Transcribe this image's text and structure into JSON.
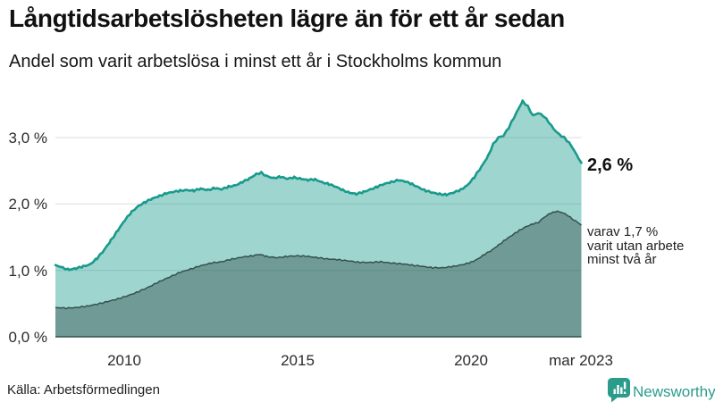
{
  "title": "Långtidsarbetslösheten lägre än för ett år sedan",
  "subtitle": "Andel som varit arbetslösa i minst ett år i Stockholms kommun",
  "source": "Källa: Arbetsförmedlingen",
  "branding": {
    "name": "Newsworthy",
    "icon": "newsworthy-speech-bubble-barchart-icon"
  },
  "annotations": {
    "latest_value": "2,6 %",
    "secondary_note": "varav 1,7 %\nvarit utan arbete\nminst två år"
  },
  "y_axis": {
    "tick_labels": [
      "3,0 %",
      "2,0 %",
      "1,0 %",
      "0,0 %"
    ],
    "tick_values": [
      3,
      2,
      1,
      0
    ]
  },
  "x_axis": {
    "tick_labels": [
      "2010",
      "2015",
      "2020",
      "mar 2023"
    ],
    "tick_values": [
      2010,
      2015,
      2020,
      2023.2
    ]
  },
  "colors": {
    "line_primary": "#189a8c",
    "line_secondary": "#35514d",
    "fill_primary_opacity": 0.42,
    "fill_secondary_opacity": 0.45,
    "gridline": "#dcdce0",
    "axis_line": "#35514d",
    "brand_teal": "#2b9c8c",
    "text": "#111111"
  },
  "chart_data": {
    "type": "area",
    "title": "Långtidsarbetslösheten lägre än för ett år sedan",
    "subtitle": "Andel som varit arbetslösa i minst ett år i Stockholms kommun",
    "unit": "%",
    "xlim": [
      2008,
      2023.2
    ],
    "ylim": [
      0,
      3.8
    ],
    "grid": "horizontal",
    "legend": "none",
    "latest_values": {
      "minst_ett_ar": 2.6,
      "minst_tva_ar": 1.7
    },
    "series": [
      {
        "name": "Andel arbetslösa minst ett år",
        "color": "#189a8c",
        "fill_opacity": 0.42,
        "points": [
          [
            2008.0,
            1.08
          ],
          [
            2008.2,
            1.04
          ],
          [
            2008.4,
            1.01
          ],
          [
            2008.6,
            1.03
          ],
          [
            2008.8,
            1.06
          ],
          [
            2009.0,
            1.09
          ],
          [
            2009.2,
            1.18
          ],
          [
            2009.4,
            1.3
          ],
          [
            2009.6,
            1.45
          ],
          [
            2009.8,
            1.6
          ],
          [
            2010.0,
            1.75
          ],
          [
            2010.2,
            1.88
          ],
          [
            2010.4,
            1.97
          ],
          [
            2010.6,
            2.03
          ],
          [
            2010.8,
            2.08
          ],
          [
            2011.0,
            2.12
          ],
          [
            2011.2,
            2.16
          ],
          [
            2011.4,
            2.18
          ],
          [
            2011.6,
            2.2
          ],
          [
            2011.8,
            2.21
          ],
          [
            2012.0,
            2.2
          ],
          [
            2012.2,
            2.23
          ],
          [
            2012.4,
            2.21
          ],
          [
            2012.6,
            2.24
          ],
          [
            2012.8,
            2.22
          ],
          [
            2013.0,
            2.26
          ],
          [
            2013.2,
            2.28
          ],
          [
            2013.4,
            2.33
          ],
          [
            2013.6,
            2.38
          ],
          [
            2013.8,
            2.45
          ],
          [
            2013.95,
            2.47
          ],
          [
            2014.1,
            2.42
          ],
          [
            2014.3,
            2.39
          ],
          [
            2014.5,
            2.41
          ],
          [
            2014.7,
            2.38
          ],
          [
            2014.9,
            2.4
          ],
          [
            2015.1,
            2.38
          ],
          [
            2015.3,
            2.36
          ],
          [
            2015.5,
            2.37
          ],
          [
            2015.7,
            2.33
          ],
          [
            2015.9,
            2.3
          ],
          [
            2016.1,
            2.26
          ],
          [
            2016.3,
            2.21
          ],
          [
            2016.5,
            2.17
          ],
          [
            2016.7,
            2.15
          ],
          [
            2016.9,
            2.18
          ],
          [
            2017.1,
            2.22
          ],
          [
            2017.3,
            2.26
          ],
          [
            2017.5,
            2.3
          ],
          [
            2017.7,
            2.33
          ],
          [
            2017.9,
            2.36
          ],
          [
            2018.1,
            2.34
          ],
          [
            2018.3,
            2.3
          ],
          [
            2018.5,
            2.25
          ],
          [
            2018.7,
            2.2
          ],
          [
            2018.9,
            2.17
          ],
          [
            2019.1,
            2.15
          ],
          [
            2019.3,
            2.14
          ],
          [
            2019.5,
            2.17
          ],
          [
            2019.7,
            2.21
          ],
          [
            2019.9,
            2.28
          ],
          [
            2020.1,
            2.4
          ],
          [
            2020.3,
            2.55
          ],
          [
            2020.5,
            2.72
          ],
          [
            2020.65,
            2.9
          ],
          [
            2020.8,
            3.0
          ],
          [
            2020.95,
            3.03
          ],
          [
            2021.1,
            3.15
          ],
          [
            2021.25,
            3.3
          ],
          [
            2021.4,
            3.45
          ],
          [
            2021.5,
            3.55
          ],
          [
            2021.65,
            3.47
          ],
          [
            2021.8,
            3.33
          ],
          [
            2021.95,
            3.37
          ],
          [
            2022.1,
            3.33
          ],
          [
            2022.25,
            3.24
          ],
          [
            2022.4,
            3.13
          ],
          [
            2022.55,
            3.05
          ],
          [
            2022.7,
            3.0
          ],
          [
            2022.85,
            2.92
          ],
          [
            2023.0,
            2.8
          ],
          [
            2023.1,
            2.7
          ],
          [
            2023.2,
            2.62
          ]
        ]
      },
      {
        "name": "varav utan arbete minst två år",
        "color": "#35514d",
        "fill_opacity": 0.45,
        "points": [
          [
            2008.0,
            0.44
          ],
          [
            2008.3,
            0.43
          ],
          [
            2008.6,
            0.44
          ],
          [
            2008.9,
            0.46
          ],
          [
            2009.2,
            0.49
          ],
          [
            2009.5,
            0.53
          ],
          [
            2009.8,
            0.57
          ],
          [
            2010.1,
            0.62
          ],
          [
            2010.4,
            0.68
          ],
          [
            2010.7,
            0.75
          ],
          [
            2011.0,
            0.83
          ],
          [
            2011.3,
            0.9
          ],
          [
            2011.6,
            0.97
          ],
          [
            2011.9,
            1.02
          ],
          [
            2012.2,
            1.07
          ],
          [
            2012.5,
            1.11
          ],
          [
            2012.8,
            1.13
          ],
          [
            2013.1,
            1.17
          ],
          [
            2013.4,
            1.2
          ],
          [
            2013.7,
            1.22
          ],
          [
            2013.9,
            1.24
          ],
          [
            2014.1,
            1.21
          ],
          [
            2014.4,
            1.19
          ],
          [
            2014.7,
            1.21
          ],
          [
            2015.0,
            1.22
          ],
          [
            2015.3,
            1.21
          ],
          [
            2015.6,
            1.19
          ],
          [
            2015.9,
            1.17
          ],
          [
            2016.2,
            1.16
          ],
          [
            2016.5,
            1.14
          ],
          [
            2016.8,
            1.12
          ],
          [
            2017.1,
            1.12
          ],
          [
            2017.4,
            1.13
          ],
          [
            2017.7,
            1.11
          ],
          [
            2018.0,
            1.1
          ],
          [
            2018.3,
            1.08
          ],
          [
            2018.6,
            1.06
          ],
          [
            2018.9,
            1.04
          ],
          [
            2019.2,
            1.04
          ],
          [
            2019.5,
            1.06
          ],
          [
            2019.8,
            1.09
          ],
          [
            2020.0,
            1.12
          ],
          [
            2020.2,
            1.17
          ],
          [
            2020.4,
            1.24
          ],
          [
            2020.6,
            1.3
          ],
          [
            2020.8,
            1.38
          ],
          [
            2021.0,
            1.46
          ],
          [
            2021.2,
            1.53
          ],
          [
            2021.4,
            1.6
          ],
          [
            2021.6,
            1.66
          ],
          [
            2021.8,
            1.7
          ],
          [
            2021.95,
            1.72
          ],
          [
            2022.1,
            1.79
          ],
          [
            2022.3,
            1.86
          ],
          [
            2022.5,
            1.89
          ],
          [
            2022.65,
            1.87
          ],
          [
            2022.8,
            1.83
          ],
          [
            2022.95,
            1.77
          ],
          [
            2023.1,
            1.72
          ],
          [
            2023.2,
            1.68
          ]
        ]
      }
    ]
  }
}
